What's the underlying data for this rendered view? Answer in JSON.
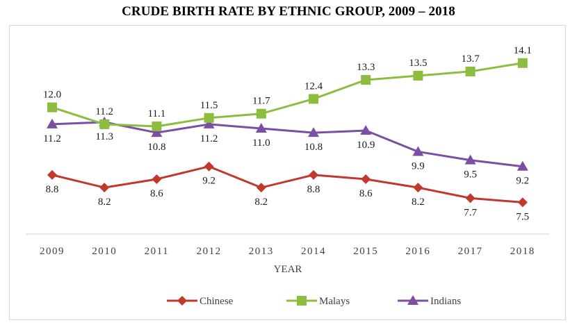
{
  "chart_data": {
    "type": "line",
    "title": "CRUDE BIRTH RATE BY ETHNIC GROUP, 2009 – 2018",
    "xlabel": "YEAR",
    "ylabel": "",
    "categories": [
      "2009",
      "2010",
      "2011",
      "2012",
      "2013",
      "2014",
      "2015",
      "2016",
      "2017",
      "2018"
    ],
    "ylim": [
      6,
      14.5
    ],
    "grid": false,
    "legend_position": "bottom",
    "series": [
      {
        "name": "Chinese",
        "color": "#c0392b",
        "marker": "diamond",
        "label_position": "below",
        "values": [
          8.8,
          8.2,
          8.6,
          9.2,
          8.2,
          8.8,
          8.6,
          8.2,
          7.7,
          7.5
        ],
        "labels": [
          "8.8",
          "8.2",
          "8.6",
          "9.2",
          "8.2",
          "8.8",
          "8.6",
          "8.2",
          "7.7",
          "7.5"
        ]
      },
      {
        "name": "Malays",
        "color": "#8cbd3f",
        "marker": "square",
        "label_position": "above",
        "values": [
          12.0,
          11.2,
          11.1,
          11.5,
          11.7,
          12.4,
          13.3,
          13.5,
          13.7,
          14.1
        ],
        "labels": [
          "12.0",
          "11.2",
          "11.1",
          "11.5",
          "11.7",
          "12.4",
          "13.3",
          "13.5",
          "13.7",
          "14.1"
        ]
      },
      {
        "name": "Indians",
        "color": "#7b4fa3",
        "marker": "triangle",
        "label_position": "below",
        "values": [
          11.2,
          11.3,
          10.8,
          11.2,
          11.0,
          10.8,
          10.9,
          9.9,
          9.5,
          9.2
        ],
        "labels": [
          "11.2",
          "11.3",
          "10.8",
          "11.2",
          "11.0",
          "10.8",
          "10.9",
          "9.9",
          "9.5",
          "9.2"
        ]
      }
    ]
  }
}
